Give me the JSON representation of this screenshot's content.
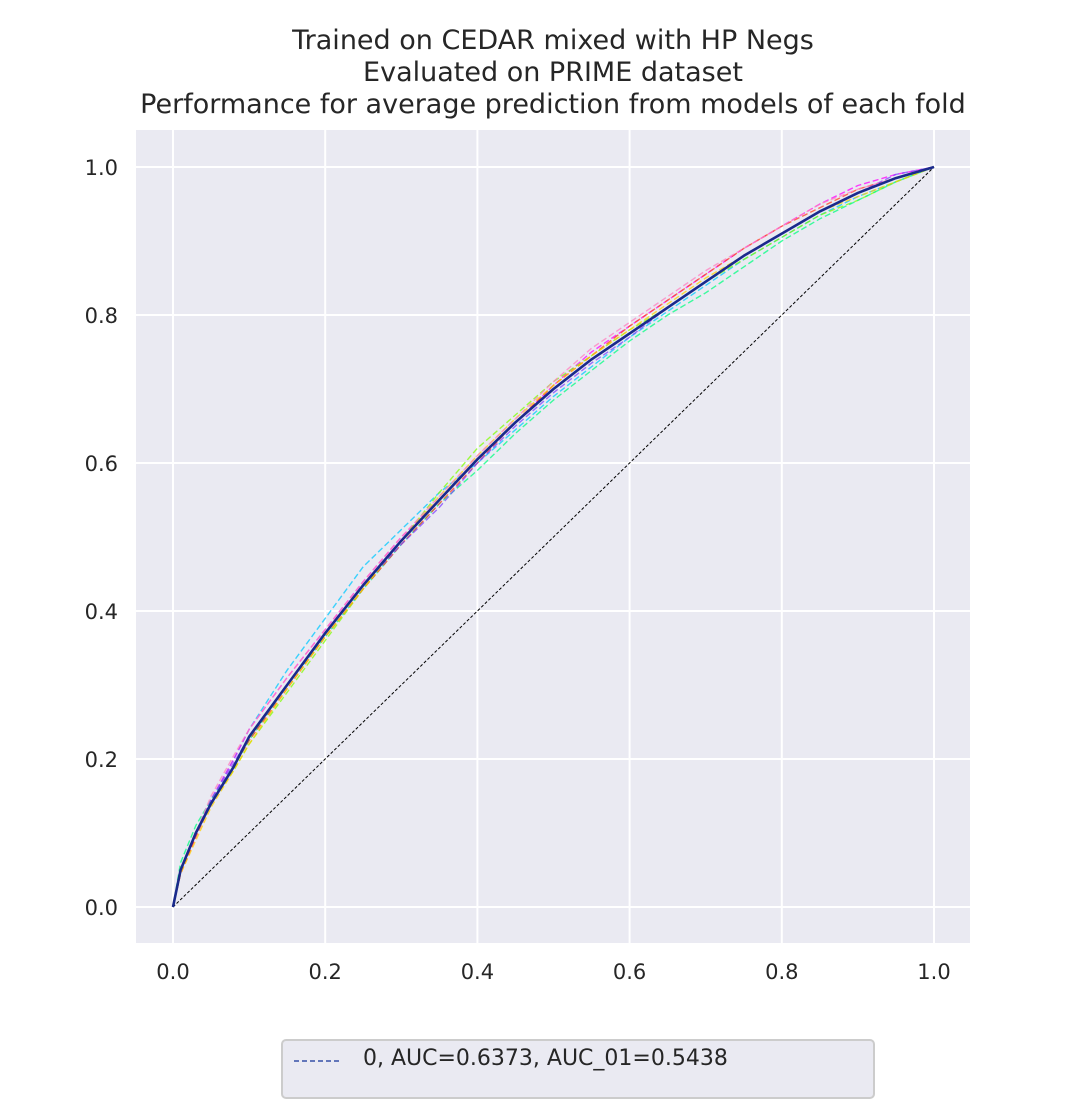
{
  "chart_data": {
    "type": "line",
    "title_lines": [
      "Trained on CEDAR mixed with HP Negs",
      "Evaluated on PRIME dataset",
      "Performance for average prediction from models of each fold"
    ],
    "xlabel": "",
    "ylabel": "",
    "xlim": [
      -0.05,
      1.05
    ],
    "ylim": [
      -0.05,
      1.05
    ],
    "xticks": [
      "0.0",
      "0.2",
      "0.4",
      "0.6",
      "0.8",
      "1.0"
    ],
    "yticks": [
      "0.0",
      "0.2",
      "0.4",
      "0.6",
      "0.8",
      "1.0"
    ],
    "grid": true,
    "background": "#eaeaf2",
    "x": [
      0,
      0.01,
      0.03,
      0.05,
      0.08,
      0.1,
      0.15,
      0.2,
      0.25,
      0.3,
      0.35,
      0.4,
      0.45,
      0.5,
      0.55,
      0.6,
      0.65,
      0.7,
      0.75,
      0.8,
      0.85,
      0.9,
      0.95,
      1.0
    ],
    "series": [
      {
        "name": "0, AUC=0.6373, AUC_01=0.5438",
        "color": "#1a2a8c",
        "style": "solid",
        "width": 2.6,
        "values": [
          0,
          0.05,
          0.1,
          0.14,
          0.19,
          0.23,
          0.3,
          0.37,
          0.435,
          0.495,
          0.55,
          0.605,
          0.655,
          0.7,
          0.74,
          0.775,
          0.81,
          0.845,
          0.88,
          0.91,
          0.94,
          0.965,
          0.985,
          1.0
        ]
      },
      {
        "color": "#00c8ff",
        "style": "dashed",
        "width": 1.4,
        "values": [
          0,
          0.05,
          0.1,
          0.145,
          0.2,
          0.24,
          0.32,
          0.39,
          0.46,
          0.51,
          0.56,
          0.6,
          0.645,
          0.69,
          0.73,
          0.77,
          0.805,
          0.84,
          0.875,
          0.905,
          0.935,
          0.96,
          0.98,
          1.0
        ]
      },
      {
        "color": "#ff00ff",
        "style": "dashed",
        "width": 1.4,
        "values": [
          0,
          0.045,
          0.095,
          0.145,
          0.2,
          0.24,
          0.31,
          0.375,
          0.44,
          0.5,
          0.55,
          0.605,
          0.655,
          0.705,
          0.75,
          0.785,
          0.82,
          0.855,
          0.89,
          0.92,
          0.95,
          0.975,
          0.99,
          1.0
        ]
      },
      {
        "color": "#80ff00",
        "style": "dashed",
        "width": 1.4,
        "values": [
          0,
          0.05,
          0.1,
          0.14,
          0.185,
          0.22,
          0.29,
          0.36,
          0.43,
          0.495,
          0.56,
          0.62,
          0.665,
          0.71,
          0.745,
          0.78,
          0.81,
          0.845,
          0.875,
          0.905,
          0.935,
          0.955,
          0.98,
          1.0
        ]
      },
      {
        "color": "#00ff80",
        "style": "dashed",
        "width": 1.4,
        "values": [
          0,
          0.06,
          0.11,
          0.145,
          0.19,
          0.225,
          0.3,
          0.365,
          0.43,
          0.49,
          0.545,
          0.59,
          0.64,
          0.685,
          0.725,
          0.765,
          0.8,
          0.83,
          0.865,
          0.9,
          0.93,
          0.955,
          0.98,
          1.0
        ]
      },
      {
        "color": "#ff4020",
        "style": "dashed",
        "width": 1.4,
        "values": [
          0,
          0.045,
          0.095,
          0.14,
          0.19,
          0.225,
          0.295,
          0.365,
          0.43,
          0.49,
          0.545,
          0.6,
          0.655,
          0.705,
          0.745,
          0.785,
          0.82,
          0.855,
          0.89,
          0.92,
          0.945,
          0.97,
          0.985,
          1.0
        ]
      },
      {
        "color": "#ffd000",
        "style": "dashed",
        "width": 1.4,
        "values": [
          0,
          0.045,
          0.09,
          0.135,
          0.185,
          0.22,
          0.295,
          0.365,
          0.43,
          0.495,
          0.555,
          0.61,
          0.66,
          0.705,
          0.745,
          0.78,
          0.815,
          0.85,
          0.88,
          0.91,
          0.94,
          0.96,
          0.98,
          1.0
        ]
      },
      {
        "color": "#8040ff",
        "style": "dashed",
        "width": 1.4,
        "values": [
          0,
          0.05,
          0.1,
          0.145,
          0.195,
          0.23,
          0.3,
          0.37,
          0.435,
          0.49,
          0.54,
          0.6,
          0.65,
          0.695,
          0.735,
          0.77,
          0.81,
          0.845,
          0.88,
          0.91,
          0.94,
          0.965,
          0.99,
          1.0
        ]
      },
      {
        "color": "#ff80c0",
        "style": "dashed",
        "width": 1.4,
        "values": [
          0,
          0.05,
          0.1,
          0.15,
          0.205,
          0.24,
          0.31,
          0.375,
          0.44,
          0.5,
          0.555,
          0.61,
          0.66,
          0.71,
          0.755,
          0.79,
          0.825,
          0.86,
          0.89,
          0.92,
          0.95,
          0.97,
          0.985,
          1.0
        ]
      }
    ],
    "reference_line": {
      "x": [
        0,
        1
      ],
      "y": [
        0,
        1
      ],
      "color": "#000000",
      "style": "dashed"
    },
    "legend": {
      "placement": "below",
      "entries": [
        "0, AUC=0.6373, AUC_01=0.5438"
      ]
    }
  }
}
